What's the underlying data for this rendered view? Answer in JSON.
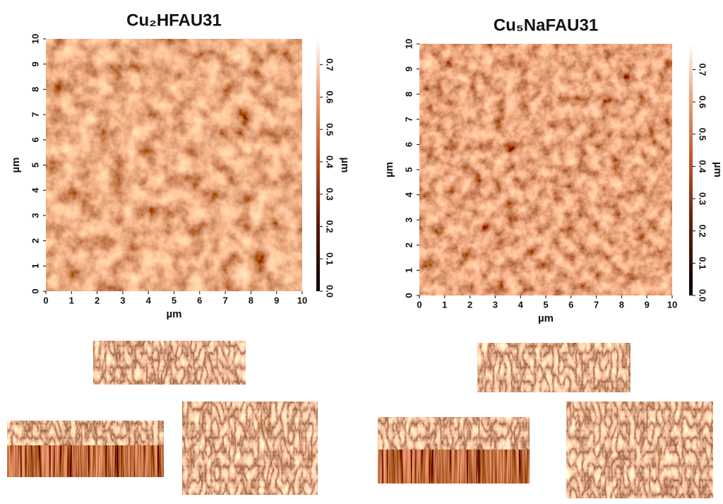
{
  "panels": [
    {
      "title": "Cu₂HFAU31",
      "x_axis": {
        "label": "µm",
        "range": [
          0,
          10
        ],
        "ticks": [
          0,
          1,
          2,
          3,
          4,
          5,
          6,
          7,
          8,
          9,
          10
        ]
      },
      "y_axis": {
        "label": "µm",
        "range": [
          0,
          10
        ],
        "ticks": [
          0,
          1,
          2,
          3,
          4,
          5,
          6,
          7,
          8,
          9,
          10
        ]
      },
      "colorbar": {
        "label": "µm",
        "range": [
          0,
          0.78
        ],
        "ticks": [
          {
            "value": 0,
            "label": "0.0"
          },
          0.1,
          0.2,
          0.3,
          0.4,
          0.5,
          0.6,
          0.7
        ]
      }
    },
    {
      "title": "Cu₅NaFAU31",
      "x_axis": {
        "label": "µm",
        "range": [
          0,
          10
        ],
        "ticks": [
          0,
          1,
          2,
          3,
          4,
          5,
          6,
          7,
          8,
          9,
          10
        ]
      },
      "y_axis": {
        "label": "µm",
        "range": [
          0,
          10
        ],
        "ticks": [
          0,
          1,
          2,
          3,
          4,
          5,
          6,
          7,
          8,
          9,
          10
        ]
      },
      "colorbar": {
        "label": "µm",
        "range": [
          0,
          0.78
        ],
        "ticks": [
          {
            "value": 0,
            "label": "0.0"
          },
          0.1,
          0.2,
          0.3,
          0.4,
          0.5,
          0.6,
          0.7
        ]
      }
    }
  ]
}
